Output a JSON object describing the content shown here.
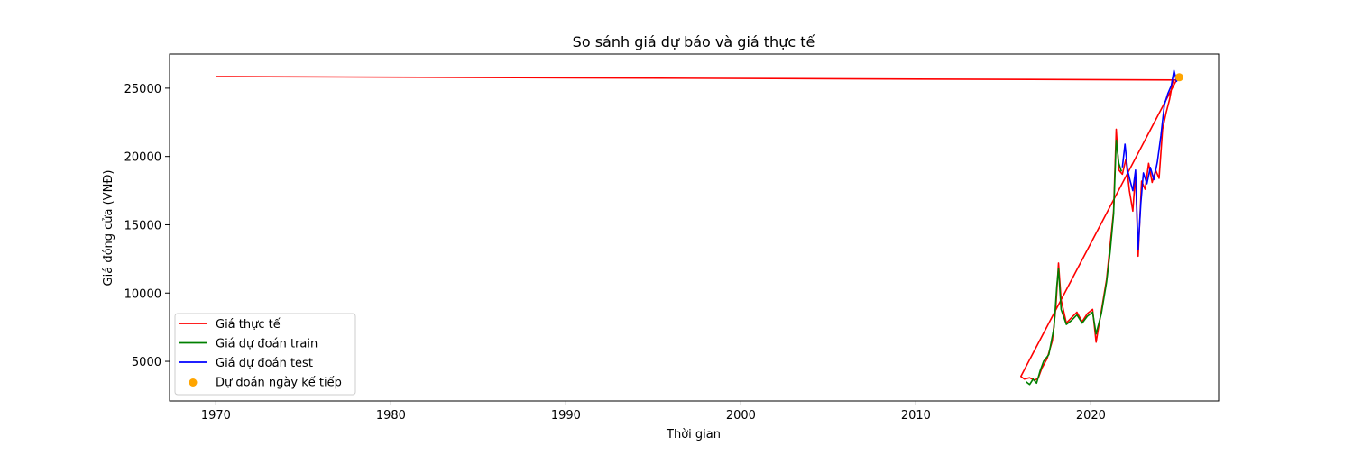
{
  "chart_data": {
    "type": "line",
    "title": "So sánh giá dự báo và giá thực tế",
    "xlabel": "Thời gian",
    "ylabel": "Giá đóng cửa (VNĐ)",
    "xlim": [
      1967.35,
      2027.3
    ],
    "ylim": [
      2100,
      27500
    ],
    "xticks": [
      1970,
      1980,
      1990,
      2000,
      2010,
      2020
    ],
    "xtick_labels": [
      "1970",
      "1980",
      "1990",
      "2000",
      "2010",
      "2020"
    ],
    "yticks": [
      5000,
      10000,
      15000,
      20000,
      25000
    ],
    "ytick_labels": [
      "5000",
      "10000",
      "15000",
      "20000",
      "25000"
    ],
    "grid": false,
    "legend_position": "lower-left",
    "colors": {
      "actual": "#ff0000",
      "train": "#008000",
      "test": "#0000ff",
      "next": "#ffa500"
    },
    "series": [
      {
        "name": "Giá thực tế",
        "kind": "line",
        "color": "#ff0000",
        "points": [
          [
            1970.0,
            25850
          ],
          [
            2024.9,
            25600
          ],
          [
            2016.0,
            3900
          ],
          [
            2016.2,
            3700
          ],
          [
            2016.5,
            3800
          ],
          [
            2016.8,
            3600
          ],
          [
            2017.0,
            3800
          ],
          [
            2017.2,
            4500
          ],
          [
            2017.5,
            5200
          ],
          [
            2017.8,
            6500
          ],
          [
            2018.0,
            9000
          ],
          [
            2018.15,
            12200
          ],
          [
            2018.3,
            9500
          ],
          [
            2018.6,
            7800
          ],
          [
            2018.9,
            8200
          ],
          [
            2019.2,
            8600
          ],
          [
            2019.5,
            7900
          ],
          [
            2019.8,
            8500
          ],
          [
            2020.1,
            8800
          ],
          [
            2020.3,
            6400
          ],
          [
            2020.6,
            8700
          ],
          [
            2020.9,
            11000
          ],
          [
            2021.1,
            13500
          ],
          [
            2021.3,
            16000
          ],
          [
            2021.45,
            22000
          ],
          [
            2021.6,
            19000
          ],
          [
            2021.8,
            18700
          ],
          [
            2022.0,
            19800
          ],
          [
            2022.2,
            17500
          ],
          [
            2022.4,
            16000
          ],
          [
            2022.55,
            18800
          ],
          [
            2022.7,
            12700
          ],
          [
            2022.9,
            18200
          ],
          [
            2023.1,
            17600
          ],
          [
            2023.3,
            19500
          ],
          [
            2023.5,
            18100
          ],
          [
            2023.7,
            19000
          ],
          [
            2023.9,
            18400
          ],
          [
            2024.1,
            22000
          ],
          [
            2024.3,
            23200
          ],
          [
            2024.5,
            24200
          ],
          [
            2024.7,
            25600
          ],
          [
            2024.9,
            25600
          ]
        ]
      },
      {
        "name": "Giá dự đoán train",
        "kind": "line",
        "color": "#008000",
        "points": [
          [
            2016.3,
            3500
          ],
          [
            2016.5,
            3300
          ],
          [
            2016.7,
            3700
          ],
          [
            2016.9,
            3400
          ],
          [
            2017.1,
            4300
          ],
          [
            2017.3,
            5000
          ],
          [
            2017.6,
            5500
          ],
          [
            2017.9,
            7500
          ],
          [
            2018.05,
            10500
          ],
          [
            2018.15,
            11800
          ],
          [
            2018.3,
            8800
          ],
          [
            2018.6,
            7700
          ],
          [
            2018.9,
            8000
          ],
          [
            2019.2,
            8400
          ],
          [
            2019.5,
            7800
          ],
          [
            2019.8,
            8300
          ],
          [
            2020.1,
            8600
          ],
          [
            2020.3,
            7000
          ],
          [
            2020.6,
            8500
          ],
          [
            2020.9,
            10800
          ],
          [
            2021.1,
            13000
          ],
          [
            2021.3,
            15800
          ],
          [
            2021.45,
            21200
          ],
          [
            2021.6,
            19500
          ],
          [
            2021.75,
            18900
          ]
        ]
      },
      {
        "name": "Giá dự đoán test",
        "kind": "line",
        "color": "#0000ff",
        "points": [
          [
            2021.8,
            19200
          ],
          [
            2021.95,
            20900
          ],
          [
            2022.1,
            19000
          ],
          [
            2022.25,
            18200
          ],
          [
            2022.4,
            17500
          ],
          [
            2022.55,
            19000
          ],
          [
            2022.7,
            13200
          ],
          [
            2022.85,
            16500
          ],
          [
            2023.0,
            18800
          ],
          [
            2023.2,
            18000
          ],
          [
            2023.4,
            19200
          ],
          [
            2023.6,
            18300
          ],
          [
            2023.8,
            19600
          ],
          [
            2024.0,
            21500
          ],
          [
            2024.2,
            23800
          ],
          [
            2024.4,
            24600
          ],
          [
            2024.6,
            25200
          ],
          [
            2024.75,
            26300
          ],
          [
            2024.9,
            25500
          ],
          [
            2025.0,
            25800
          ]
        ]
      },
      {
        "name": "Dự đoán ngày kế tiếp",
        "kind": "scatter",
        "color": "#ffa500",
        "points": [
          [
            2025.05,
            25800
          ]
        ]
      }
    ]
  }
}
